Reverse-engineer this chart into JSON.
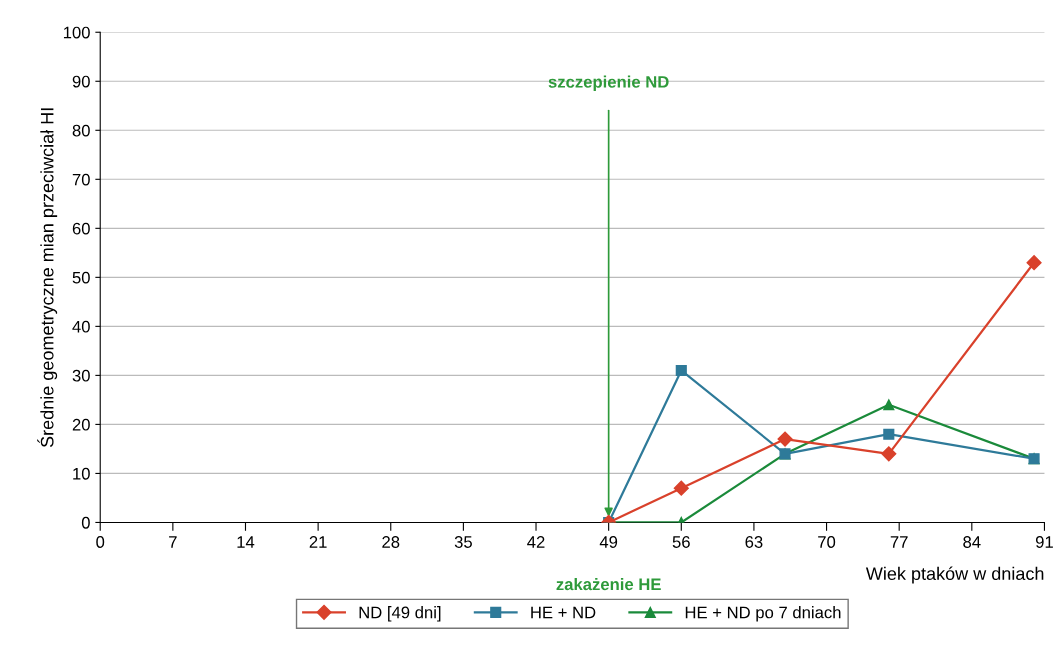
{
  "chart_data": {
    "type": "line",
    "ylabel": "Średnie geometryczne mian przeciwciał HI",
    "xlabel": "Wiek ptaków w dniach",
    "xlim": [
      0,
      91
    ],
    "xticks": [
      0,
      7,
      14,
      21,
      28,
      35,
      42,
      49,
      56,
      63,
      70,
      77,
      84,
      91
    ],
    "ylim": [
      0,
      100
    ],
    "yticks": [
      0,
      10,
      20,
      30,
      40,
      50,
      60,
      70,
      80,
      90,
      100
    ],
    "grid": "y",
    "legend": "bottom",
    "annotations": [
      {
        "text": "szczepienie ND",
        "x": 49,
        "y": 0
      },
      "zakażenie HE"
    ],
    "series": [
      {
        "name": "ND [49 dni]",
        "color": "#d9412b",
        "marker": "diamond",
        "x": [
          49,
          56,
          66,
          76,
          90
        ],
        "values": [
          0,
          7,
          17,
          14,
          53
        ]
      },
      {
        "name": "HE + ND",
        "color": "#2e7a99",
        "marker": "square",
        "x": [
          49,
          56,
          66,
          76,
          90
        ],
        "values": [
          0,
          31,
          14,
          18,
          13
        ]
      },
      {
        "name": "HE + ND po 7 dniach",
        "color": "#1a8a3a",
        "marker": "triangle",
        "x": [
          49,
          56,
          66,
          76,
          90
        ],
        "values": [
          0,
          0,
          14,
          24,
          13
        ]
      }
    ]
  }
}
